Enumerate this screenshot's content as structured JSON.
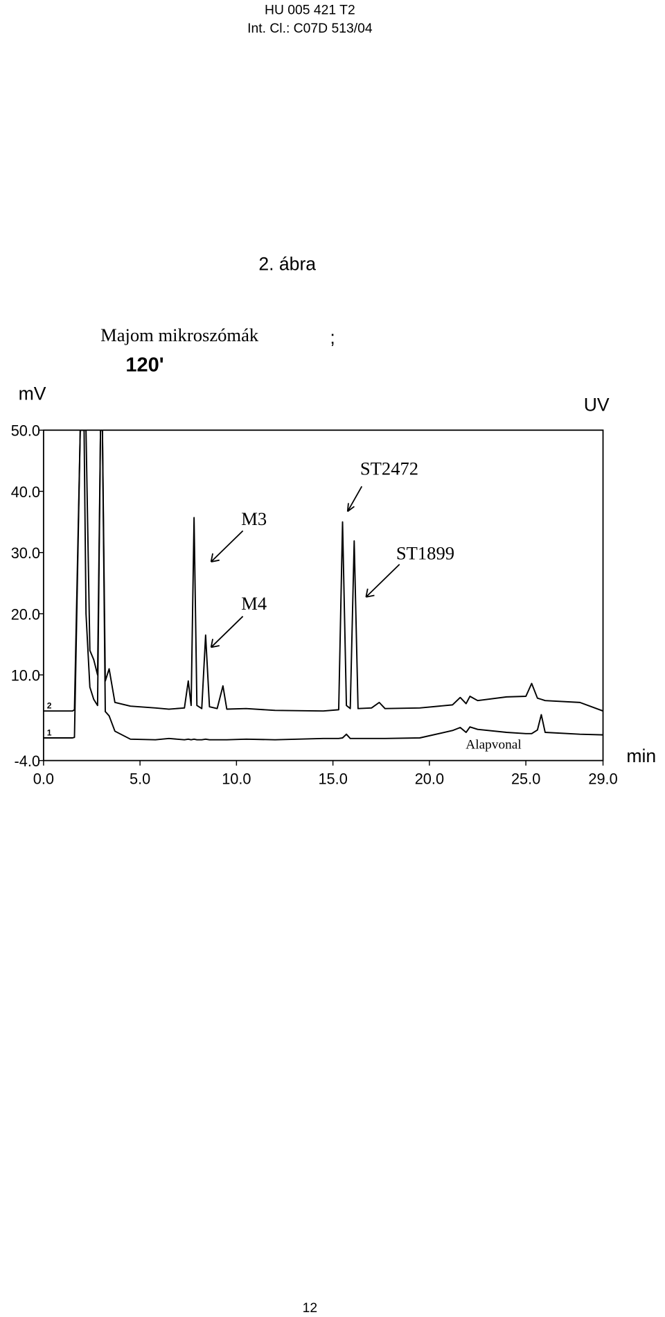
{
  "header": {
    "doc_number": "HU 005 421 T2",
    "classification": "Int. Cl.: C07D 513/04"
  },
  "figure_label": "2. ábra",
  "chart_data": {
    "type": "line",
    "title": "Majom mikroszómák",
    "title_mark": ";",
    "subtitle": "120'",
    "y_label": "mV",
    "detector_label": "UV",
    "x_label": "min",
    "xlim": [
      0,
      29
    ],
    "ylim": [
      -4,
      50
    ],
    "xticks": [
      {
        "value": 0,
        "label": "0.0"
      },
      {
        "value": 5,
        "label": "5.0"
      },
      {
        "value": 10,
        "label": "10.0"
      },
      {
        "value": 15,
        "label": "15.0"
      },
      {
        "value": 20,
        "label": "20.0"
      },
      {
        "value": 25,
        "label": "25.0"
      },
      {
        "value": 29,
        "label": "29.0"
      }
    ],
    "yticks": [
      {
        "value": -4,
        "label": "-4.0"
      },
      {
        "value": 10,
        "label": "10.0"
      },
      {
        "value": 20,
        "label": "20.0"
      },
      {
        "value": 30,
        "label": "30.0"
      },
      {
        "value": 40,
        "label": "40.0"
      },
      {
        "value": 50,
        "label": "50.0"
      }
    ],
    "x": [
      0,
      1.5,
      1.6,
      1.9,
      2.1,
      2.2,
      2.4,
      2.6,
      2.8,
      2.95,
      3.05,
      3.2,
      3.4,
      3.7,
      4.5,
      5.8,
      6.5,
      7.3,
      7.5,
      7.65,
      7.8,
      7.95,
      8.2,
      8.4,
      8.6,
      9.0,
      9.3,
      9.5,
      10.5,
      12,
      14.5,
      15.3,
      15.5,
      15.7,
      15.9,
      16.1,
      16.3,
      17.0,
      17.4,
      17.7,
      19.5,
      21.2,
      21.6,
      21.9,
      22.1,
      22.5,
      24,
      25.0,
      25.3,
      25.6,
      25.8,
      26.0,
      27.8,
      29
    ],
    "series": [
      {
        "name": "2",
        "color": "#000000",
        "values": [
          4.1,
          4.1,
          4.3,
          50,
          50,
          50,
          14,
          12.5,
          10,
          50,
          50,
          9,
          11,
          5.5,
          4.9,
          4.6,
          4.4,
          4.6,
          9,
          5,
          35.7,
          5,
          4.5,
          16.5,
          4.8,
          4.5,
          8.2,
          4.4,
          4.5,
          4.2,
          4.1,
          4.3,
          35,
          5,
          4.5,
          31.9,
          4.5,
          4.6,
          5.5,
          4.5,
          4.6,
          5.1,
          6.3,
          5.3,
          6.5,
          5.8,
          6.4,
          6.5,
          8.6,
          6.2,
          6.0,
          5.8,
          5.5,
          4.1
        ]
      },
      {
        "name": "1",
        "color": "#000000",
        "values": [
          -0.3,
          -0.3,
          -0.2,
          50,
          50,
          20,
          8,
          6,
          5,
          50,
          50,
          4,
          3.3,
          0.8,
          -0.5,
          -0.6,
          -0.4,
          -0.6,
          -0.5,
          -0.6,
          -0.5,
          -0.6,
          -0.6,
          -0.5,
          -0.6,
          -0.6,
          -0.6,
          -0.6,
          -0.5,
          -0.6,
          -0.4,
          -0.4,
          -0.3,
          0.3,
          -0.4,
          -0.4,
          -0.4,
          -0.4,
          -0.4,
          -0.4,
          -0.3,
          0.9,
          1.4,
          0.6,
          1.5,
          1.1,
          0.6,
          0.4,
          0.4,
          1.0,
          3.5,
          0.6,
          0.3,
          0.2
        ]
      }
    ],
    "annotations": [
      "M3",
      "M4",
      "ST2472",
      "ST1899",
      "Alapvonal"
    ]
  },
  "page_number": "12"
}
